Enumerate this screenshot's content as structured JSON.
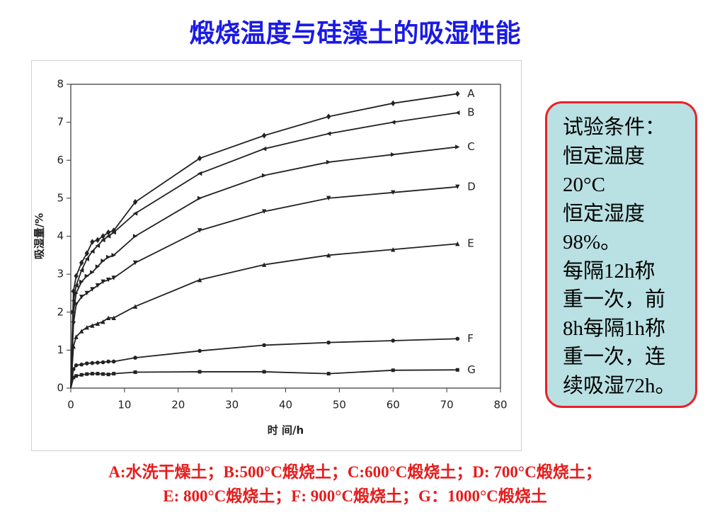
{
  "title": "煅烧温度与硅藻土的吸湿性能",
  "conditions": [
    "试验条件：",
    "恒定温度",
    "20°C",
    "恒定湿度",
    "98%。",
    "每隔12h称",
    "重一次，前",
    "8h每隔1h称",
    "重一次，连",
    "续吸湿72h。"
  ],
  "caption": [
    "A:水洗干燥土；B:500°C煅烧土；C:600°C煅烧土；D: 700°C煅烧土；",
    "E: 800°C煅烧土；F: 900°C煅烧土；G：1000°C煅烧土"
  ],
  "chart_data": {
    "type": "line",
    "x_label": "时 间/h",
    "y_label": "吸湿量/%",
    "x": [
      0,
      0.5,
      1,
      2,
      3,
      4,
      5,
      6,
      7,
      8,
      12,
      24,
      36,
      48,
      60,
      72
    ],
    "xlim": [
      0,
      80
    ],
    "xticks": [
      0,
      10,
      20,
      30,
      40,
      50,
      60,
      70,
      80
    ],
    "ylim": [
      0,
      8
    ],
    "yticks": [
      0,
      1,
      2,
      3,
      4,
      5,
      6,
      7,
      8
    ],
    "series": [
      {
        "name": "A",
        "color": "#222222",
        "marker": "diamond",
        "values": [
          0,
          2.55,
          2.95,
          3.3,
          3.55,
          3.85,
          3.9,
          4.0,
          4.1,
          4.15,
          4.9,
          6.05,
          6.65,
          7.15,
          7.5,
          7.75
        ]
      },
      {
        "name": "B",
        "color": "#222222",
        "marker": "triangle-left",
        "values": [
          0,
          2.3,
          2.7,
          3.1,
          3.4,
          3.6,
          3.75,
          3.9,
          4.0,
          4.1,
          4.6,
          5.65,
          6.3,
          6.7,
          7.0,
          7.25
        ]
      },
      {
        "name": "C",
        "color": "#222222",
        "marker": "triangle-right",
        "values": [
          0,
          2.0,
          2.5,
          2.8,
          2.95,
          3.05,
          3.2,
          3.35,
          3.45,
          3.5,
          4.0,
          5.0,
          5.6,
          5.95,
          6.15,
          6.35
        ]
      },
      {
        "name": "D",
        "color": "#222222",
        "marker": "triangle-down",
        "values": [
          0,
          1.7,
          2.2,
          2.4,
          2.5,
          2.6,
          2.7,
          2.8,
          2.85,
          2.9,
          3.3,
          4.15,
          4.65,
          5.0,
          5.15,
          5.3
        ]
      },
      {
        "name": "E",
        "color": "#222222",
        "marker": "triangle-up",
        "values": [
          0,
          1.1,
          1.35,
          1.5,
          1.6,
          1.65,
          1.7,
          1.75,
          1.85,
          1.85,
          2.15,
          2.85,
          3.25,
          3.5,
          3.65,
          3.8
        ]
      },
      {
        "name": "F",
        "color": "#222222",
        "marker": "circle",
        "values": [
          0,
          0.5,
          0.6,
          0.62,
          0.65,
          0.66,
          0.67,
          0.68,
          0.7,
          0.7,
          0.8,
          0.98,
          1.13,
          1.2,
          1.25,
          1.3
        ]
      },
      {
        "name": "G",
        "color": "#222222",
        "marker": "square",
        "values": [
          0,
          0.28,
          0.32,
          0.35,
          0.37,
          0.38,
          0.38,
          0.37,
          0.36,
          0.38,
          0.42,
          0.43,
          0.43,
          0.38,
          0.47,
          0.48
        ]
      }
    ]
  }
}
